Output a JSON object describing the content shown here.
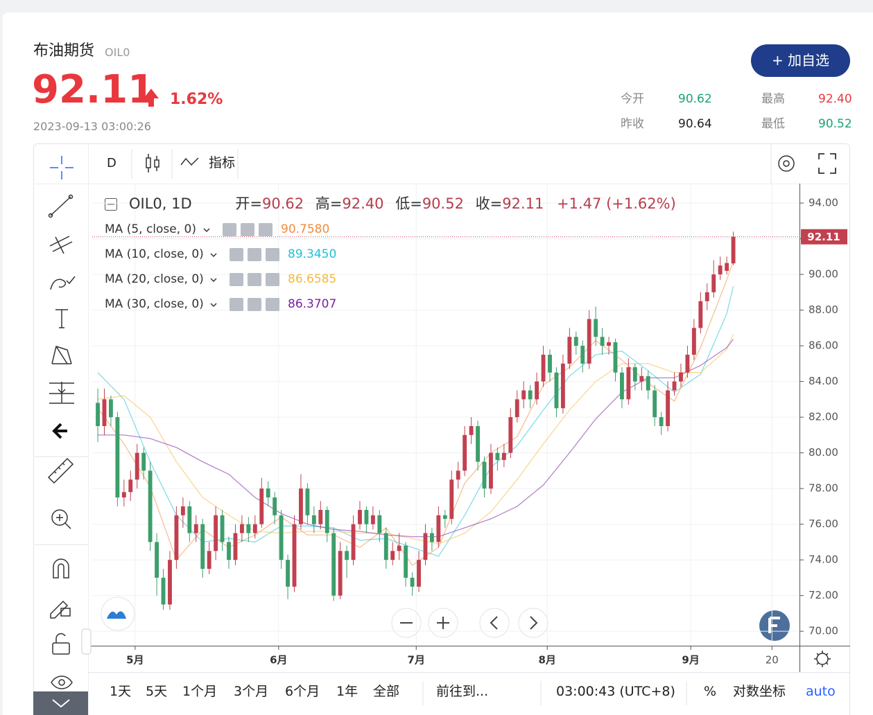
{
  "header": {
    "name": "布油期货",
    "code": "OIL0",
    "price": "92.11",
    "change_pct": "1.62%",
    "time": "2023-09-13 03:00:26",
    "button": "+ 加自选",
    "stats": [
      {
        "label": "今开",
        "value": "90.62"
      },
      {
        "label": "昨收",
        "value": "90.64"
      },
      {
        "label": "最高",
        "value": "92.40"
      },
      {
        "label": "最低",
        "value": "90.52"
      }
    ]
  },
  "toolbar": {
    "interval": "D",
    "indicators": "指标"
  },
  "legend": {
    "symbol": "OIL0, 1D",
    "open": "开=",
    "open_value": "90.62",
    "high": "高=",
    "high_value": "92.40",
    "low": "低=",
    "low_value": "90.52",
    "close": "收=",
    "close_value": "92.11",
    "change": "+1.47",
    "change_pct": "(+1.62%)"
  },
  "bottom": {
    "ranges": [
      "1天",
      "5天",
      "1个月",
      "3个月",
      "6个月",
      "1年",
      "全部"
    ],
    "goto": "前往到...",
    "clock": "03:00:43 (UTC+8)",
    "percent": "%",
    "log": "对数坐标",
    "auto": "auto"
  },
  "chart_data": {
    "type": "candlestick",
    "up_color": "#c2404f",
    "down_color": "#3d9e6b",
    "candles": [
      [
        82.8,
        83.6,
        80.6,
        81.5
      ],
      [
        81.5,
        83.6,
        81.0,
        83.0
      ],
      [
        83.0,
        83.2,
        81.5,
        82.0
      ],
      [
        82.0,
        82.3,
        77.0,
        77.5
      ],
      [
        77.5,
        78.5,
        77.0,
        77.8
      ],
      [
        77.8,
        79.0,
        77.3,
        78.5
      ],
      [
        78.5,
        80.5,
        78.0,
        80.0
      ],
      [
        80.0,
        80.3,
        78.5,
        79.0
      ],
      [
        79.0,
        79.5,
        74.5,
        75.0
      ],
      [
        75.0,
        75.5,
        72.0,
        73.0
      ],
      [
        73.0,
        73.5,
        71.2,
        71.5
      ],
      [
        71.5,
        74.5,
        71.2,
        74.0
      ],
      [
        74.0,
        77.0,
        73.5,
        76.5
      ],
      [
        76.5,
        77.5,
        75.8,
        77.0
      ],
      [
        77.0,
        77.3,
        75.0,
        75.5
      ],
      [
        75.5,
        76.5,
        75.0,
        76.0
      ],
      [
        76.0,
        76.3,
        73.0,
        73.5
      ],
      [
        73.5,
        75.0,
        73.2,
        74.5
      ],
      [
        74.5,
        77.0,
        74.0,
        76.5
      ],
      [
        76.5,
        76.8,
        74.5,
        75.0
      ],
      [
        75.0,
        75.3,
        73.5,
        74.0
      ],
      [
        74.0,
        76.0,
        73.7,
        75.5
      ],
      [
        75.5,
        76.5,
        75.0,
        76.0
      ],
      [
        76.0,
        76.4,
        75.0,
        75.5
      ],
      [
        75.5,
        76.5,
        75.2,
        76.0
      ],
      [
        76.0,
        78.6,
        75.8,
        78.0
      ],
      [
        78.0,
        78.4,
        77.0,
        77.5
      ],
      [
        77.5,
        77.8,
        76.0,
        76.5
      ],
      [
        76.5,
        76.8,
        73.5,
        74.0
      ],
      [
        74.0,
        74.3,
        71.8,
        72.5
      ],
      [
        72.5,
        76.5,
        72.2,
        76.0
      ],
      [
        76.0,
        78.8,
        75.7,
        78.0
      ],
      [
        78.0,
        78.3,
        76.0,
        76.5
      ],
      [
        76.5,
        77.0,
        75.5,
        76.0
      ],
      [
        76.0,
        77.3,
        75.7,
        76.8
      ],
      [
        76.8,
        77.0,
        75.0,
        75.5
      ],
      [
        75.5,
        75.8,
        71.7,
        72.0
      ],
      [
        72.0,
        75.0,
        71.8,
        74.5
      ],
      [
        74.5,
        74.8,
        73.0,
        74.0
      ],
      [
        74.0,
        76.5,
        73.7,
        76.0
      ],
      [
        76.0,
        77.3,
        75.7,
        76.8
      ],
      [
        76.8,
        77.0,
        75.5,
        76.0
      ],
      [
        76.0,
        77.0,
        75.7,
        76.5
      ],
      [
        76.5,
        76.8,
        75.0,
        75.5
      ],
      [
        75.5,
        75.8,
        73.5,
        74.0
      ],
      [
        74.0,
        75.0,
        73.7,
        74.5
      ],
      [
        74.5,
        75.5,
        74.0,
        74.8
      ],
      [
        74.8,
        75.0,
        72.5,
        73.0
      ],
      [
        73.0,
        73.3,
        72.0,
        72.5
      ],
      [
        72.5,
        74.5,
        72.2,
        74.0
      ],
      [
        74.0,
        76.0,
        73.7,
        75.5
      ],
      [
        75.5,
        75.8,
        74.5,
        75.0
      ],
      [
        75.0,
        77.0,
        74.7,
        76.5
      ],
      [
        76.5,
        76.8,
        75.8,
        76.3
      ],
      [
        76.3,
        79.0,
        76.0,
        78.5
      ],
      [
        78.5,
        79.5,
        78.0,
        79.0
      ],
      [
        79.0,
        81.5,
        78.7,
        81.0
      ],
      [
        81.0,
        82.0,
        80.5,
        81.5
      ],
      [
        81.5,
        81.8,
        79.0,
        79.5
      ],
      [
        79.5,
        79.8,
        77.5,
        78.0
      ],
      [
        78.0,
        80.5,
        77.7,
        80.0
      ],
      [
        80.0,
        80.3,
        79.0,
        79.6
      ],
      [
        79.6,
        80.5,
        79.2,
        80.0
      ],
      [
        80.0,
        82.5,
        79.7,
        82.0
      ],
      [
        82.0,
        83.5,
        81.7,
        83.0
      ],
      [
        83.0,
        84.0,
        82.5,
        83.5
      ],
      [
        83.5,
        83.8,
        82.5,
        83.0
      ],
      [
        83.0,
        84.5,
        82.7,
        84.0
      ],
      [
        84.0,
        86.0,
        83.7,
        85.5
      ],
      [
        85.5,
        85.8,
        84.0,
        84.5
      ],
      [
        84.5,
        84.8,
        82.0,
        82.5
      ],
      [
        82.5,
        85.5,
        82.2,
        85.0
      ],
      [
        85.0,
        87.0,
        84.7,
        86.5
      ],
      [
        86.5,
        86.8,
        85.5,
        86.0
      ],
      [
        86.0,
        86.3,
        84.5,
        85.0
      ],
      [
        85.0,
        88.0,
        84.7,
        87.5
      ],
      [
        87.5,
        88.2,
        86.0,
        86.5
      ],
      [
        86.5,
        87.0,
        85.5,
        86.0
      ],
      [
        86.0,
        86.5,
        85.5,
        86.2
      ],
      [
        86.2,
        86.4,
        84.0,
        84.5
      ],
      [
        84.5,
        84.8,
        82.5,
        83.0
      ],
      [
        83.0,
        85.3,
        82.7,
        84.8
      ],
      [
        84.8,
        85.0,
        83.5,
        84.0
      ],
      [
        84.0,
        84.8,
        83.5,
        84.3
      ],
      [
        84.3,
        84.6,
        83.0,
        83.5
      ],
      [
        83.5,
        83.8,
        81.5,
        82.0
      ],
      [
        82.0,
        82.3,
        81.0,
        81.5
      ],
      [
        81.5,
        84.0,
        81.2,
        83.5
      ],
      [
        83.5,
        84.5,
        83.2,
        84.0
      ],
      [
        84.0,
        85.0,
        83.7,
        84.5
      ],
      [
        84.5,
        86.0,
        84.2,
        85.5
      ],
      [
        85.5,
        87.5,
        85.2,
        87.0
      ],
      [
        87.0,
        89.0,
        86.7,
        88.5
      ],
      [
        88.5,
        89.5,
        88.0,
        89.0
      ],
      [
        89.0,
        90.8,
        88.7,
        90.0
      ],
      [
        90.0,
        91.0,
        89.7,
        90.5
      ],
      [
        90.2,
        91.0,
        90.0,
        90.64
      ],
      [
        90.62,
        92.4,
        90.52,
        92.11
      ]
    ],
    "x": [
      0,
      4,
      8,
      12,
      16,
      20,
      24,
      28,
      32,
      36,
      40,
      44,
      48,
      52,
      56,
      60,
      64,
      68,
      72,
      76,
      80,
      84,
      88,
      92,
      96,
      97
    ],
    "series": [
      {
        "name": "MA (5, close, 0)",
        "color": "#f28c3a",
        "values": [
          82.5,
          80.5,
          78.1,
          74.0,
          75.7,
          74.7,
          75.4,
          76.4,
          75.4,
          75.4,
          74.7,
          75.8,
          73.7,
          74.7,
          78.3,
          80.0,
          80.9,
          83.8,
          84.8,
          86.3,
          85.2,
          83.9,
          82.9,
          85.9,
          89.7,
          90.758
        ],
        "value_labels": [
          null,
          null,
          null,
          null,
          null,
          null,
          null,
          null,
          null,
          null,
          null,
          null,
          null,
          null,
          null,
          null,
          null,
          null,
          null,
          null,
          null,
          null,
          null,
          null,
          null,
          "90.7580"
        ]
      },
      {
        "name": "MA (10, close, 0)",
        "color": "#1fc1d6",
        "values": [
          84.5,
          83.0,
          79.5,
          76.5,
          75.0,
          75.2,
          75.0,
          75.9,
          75.9,
          75.8,
          75.1,
          75.2,
          74.7,
          74.2,
          76.5,
          79.2,
          80.4,
          82.4,
          84.3,
          85.5,
          85.7,
          84.6,
          83.4,
          84.4,
          87.8,
          89.345
        ],
        "value_labels": [
          null,
          null,
          null,
          null,
          null,
          null,
          null,
          null,
          null,
          null,
          null,
          null,
          null,
          null,
          null,
          null,
          null,
          null,
          null,
          null,
          null,
          null,
          null,
          null,
          null,
          "89.3450"
        ]
      },
      {
        "name": "MA (20, close, 0)",
        "color": "#f5b840",
        "values": [
          83.0,
          83.2,
          82.0,
          79.5,
          77.5,
          76.5,
          75.6,
          75.5,
          75.6,
          75.6,
          75.5,
          75.5,
          75.2,
          74.9,
          75.5,
          76.7,
          78.5,
          80.5,
          82.4,
          84.0,
          85.0,
          85.0,
          84.5,
          84.5,
          85.8,
          86.6585
        ],
        "value_labels": [
          null,
          null,
          null,
          null,
          null,
          null,
          null,
          null,
          null,
          null,
          null,
          null,
          null,
          null,
          null,
          null,
          null,
          null,
          null,
          null,
          null,
          null,
          null,
          null,
          null,
          "86.6585"
        ]
      },
      {
        "name": "MA (30, close, 0)",
        "color": "#7b1fa2",
        "values": [
          81.0,
          81.0,
          80.8,
          80.3,
          79.5,
          78.8,
          77.5,
          76.6,
          76.0,
          75.7,
          75.6,
          75.4,
          75.3,
          75.3,
          75.8,
          76.3,
          77.0,
          78.2,
          80.0,
          81.9,
          83.4,
          84.2,
          84.2,
          84.9,
          85.9,
          86.3707
        ],
        "value_labels": [
          null,
          null,
          null,
          null,
          null,
          null,
          null,
          null,
          null,
          null,
          null,
          null,
          null,
          null,
          null,
          null,
          null,
          null,
          null,
          null,
          null,
          null,
          null,
          null,
          null,
          "86.3707"
        ]
      }
    ],
    "ylim": [
      69.19,
      95.09
    ],
    "yticks": [
      {
        "value": 70,
        "label": "70.00"
      },
      {
        "value": 72,
        "label": "72.00"
      },
      {
        "value": 74,
        "label": "74.00"
      },
      {
        "value": 76,
        "label": "76.00"
      },
      {
        "value": 78,
        "label": "78.00"
      },
      {
        "value": 80,
        "label": "80.00"
      },
      {
        "value": 82,
        "label": "82.00"
      },
      {
        "value": 84,
        "label": "84.00"
      },
      {
        "value": 86,
        "label": "86.00"
      },
      {
        "value": 88,
        "label": "88.00"
      },
      {
        "value": 90,
        "label": "90.00"
      },
      {
        "value": 92,
        "label": "92.00"
      },
      {
        "value": 94,
        "label": "94.00"
      }
    ],
    "xlim": [
      -0.85,
      107.1
    ],
    "xticks": [
      {
        "value": 5.7,
        "label": "5月"
      },
      {
        "value": 27.6,
        "label": "6月"
      },
      {
        "value": 48.6,
        "label": "7月"
      },
      {
        "value": 68.6,
        "label": "8月"
      },
      {
        "value": 90.5,
        "label": "9月"
      },
      {
        "value": 102.9,
        "label": "20"
      }
    ],
    "grid": true
  }
}
